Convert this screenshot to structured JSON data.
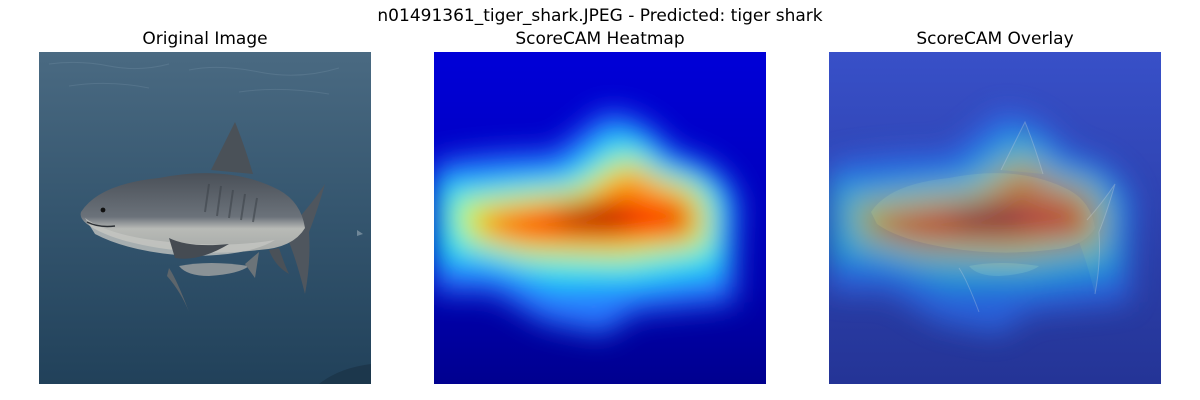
{
  "figure": {
    "suptitle": "n01491361_tiger_shark.JPEG - Predicted: tiger shark",
    "panels": [
      {
        "title": "Original Image"
      },
      {
        "title": "ScoreCAM Heatmap"
      },
      {
        "title": "ScoreCAM Overlay"
      }
    ]
  },
  "colors": {
    "water_light": "#4a6a82",
    "water_dark": "#21415a",
    "shark_body": "#59606a",
    "shark_belly": "#b8bab6",
    "cmap_low": "#00008f",
    "cmap_high": "#8b0000"
  }
}
